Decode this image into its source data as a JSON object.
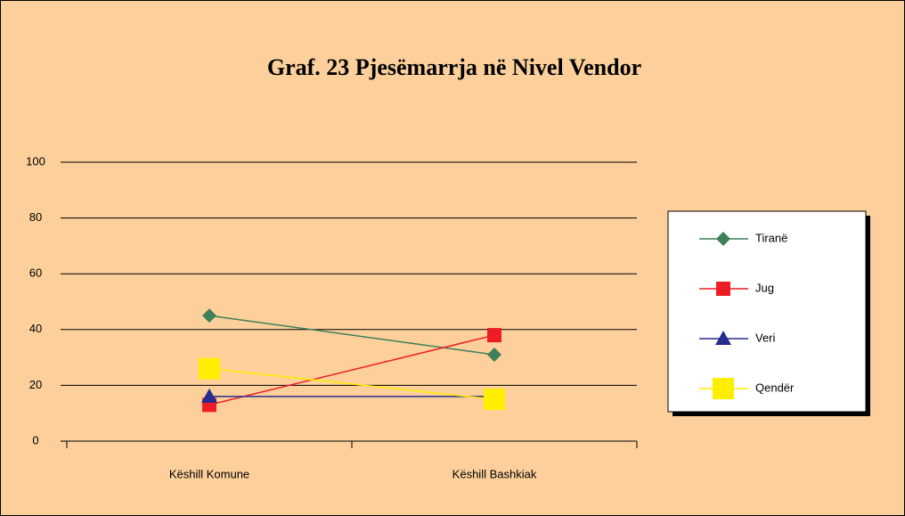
{
  "chart_data": {
    "type": "line",
    "title": "Graf. 23  Pjesëmarrja në Nivel Vendor",
    "categories": [
      "Këshill Komune",
      "Këshill Bashkiak"
    ],
    "series": [
      {
        "name": "Tiranë",
        "color": "#3f7f5a",
        "marker": "diamond",
        "values": [
          45,
          31
        ]
      },
      {
        "name": "Jug",
        "color": "#ee1c25",
        "marker": "square",
        "values": [
          13,
          38
        ]
      },
      {
        "name": "Veri",
        "color": "#262b8f",
        "marker": "triangle",
        "values": [
          16,
          16
        ]
      },
      {
        "name": "Qendër",
        "color": "#ffee00",
        "marker": "bigsquare",
        "values": [
          26,
          15
        ]
      }
    ],
    "ylim": [
      0,
      100
    ],
    "yticks": [
      0,
      20,
      40,
      60,
      80,
      100
    ],
    "grid": true,
    "legend": "right"
  }
}
